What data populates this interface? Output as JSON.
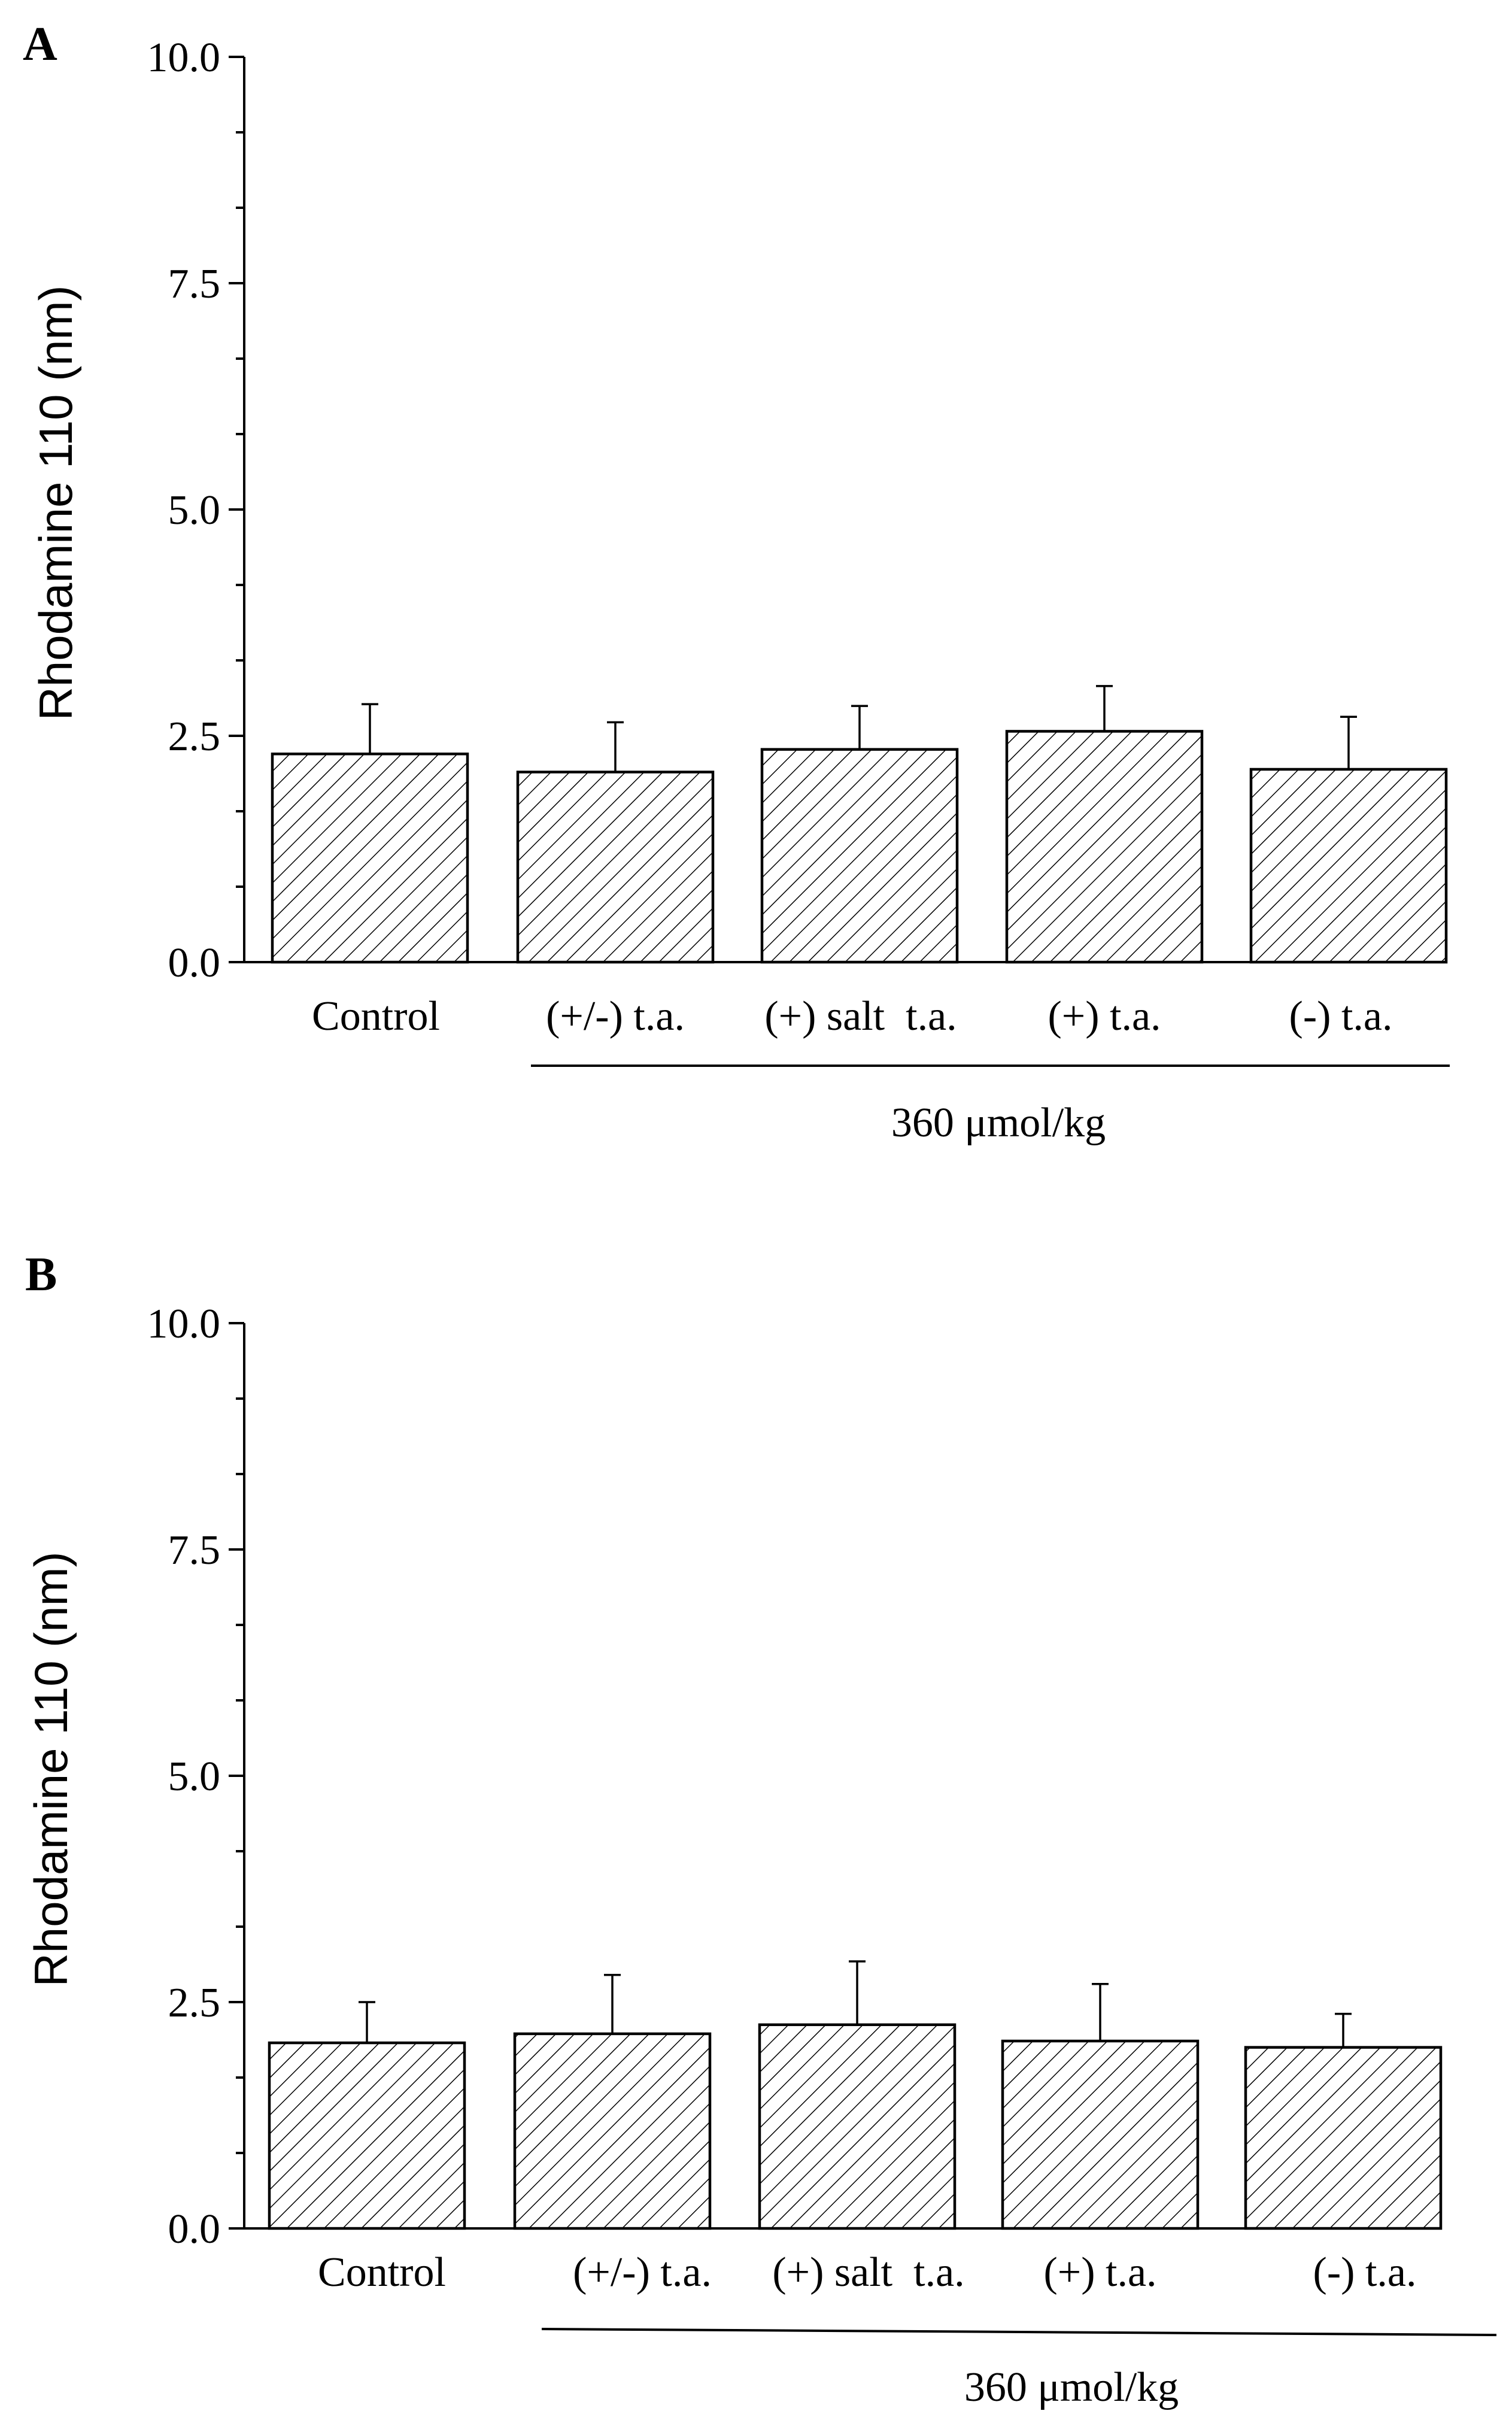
{
  "chart_data": [
    {
      "type": "bar",
      "panel": "A",
      "ylabel": "Rhodamine 110 (nm)",
      "ylim": [
        0,
        10
      ],
      "yticks": [
        "0.0",
        "2.5",
        "5.0",
        "7.5",
        "10.0"
      ],
      "categories": [
        "Control",
        "(+/-) t.a.",
        "(+) salt  t.a.",
        "(+) t.a.",
        "(-) t.a."
      ],
      "values": [
        2.3,
        2.1,
        2.35,
        2.55,
        2.13
      ],
      "errors": [
        0.55,
        0.55,
        0.48,
        0.5,
        0.58
      ],
      "group_label": "360 μmol/kg",
      "fill": "hatched",
      "color": "#000000"
    },
    {
      "type": "bar",
      "panel": "B",
      "ylabel": "Rhodamine 110 (nm)",
      "ylim": [
        0,
        10
      ],
      "yticks": [
        "0.0",
        "2.5",
        "5.0",
        "7.5",
        "10.0"
      ],
      "categories": [
        "Control",
        "(+/-) t.a.",
        "(+) salt  t.a.",
        "(+) t.a.",
        "(-) t.a."
      ],
      "values": [
        2.05,
        2.15,
        2.25,
        2.07,
        2.0
      ],
      "errors": [
        0.45,
        0.65,
        0.7,
        0.63,
        0.37
      ],
      "group_label": "360 μmol/kg",
      "fill": "hatched",
      "color": "#000000"
    }
  ]
}
